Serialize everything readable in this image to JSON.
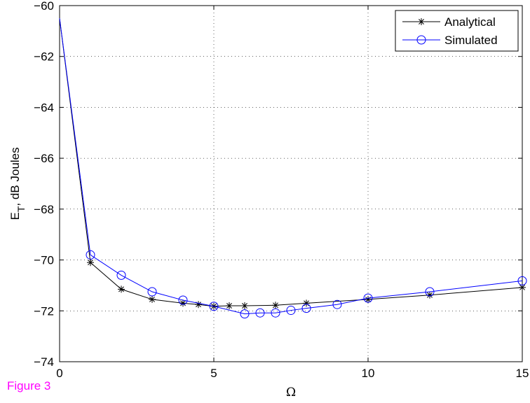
{
  "caption": {
    "text": "Figure 3",
    "color": "#ff00ff"
  },
  "chart_data": {
    "type": "line",
    "title": "",
    "xlabel": "Ω",
    "ylabel_main": "E",
    "ylabel_sub": "T",
    "ylabel_rest": ", dB Joules",
    "xlim": [
      0,
      15
    ],
    "ylim": [
      -74,
      -60
    ],
    "xticks": [
      0,
      5,
      10,
      15
    ],
    "yticks": [
      -74,
      -72,
      -70,
      -68,
      -66,
      -64,
      -62,
      -60
    ],
    "xticklabels": [
      "0",
      "5",
      "10",
      "15"
    ],
    "yticklabels": [
      "−74",
      "−72",
      "−70",
      "−68",
      "−66",
      "−64",
      "−62",
      "−60"
    ],
    "grid": true,
    "legend_position": "top-right",
    "series": [
      {
        "name": "Analytical",
        "color": "#000000",
        "marker": "asterisk",
        "x": [
          0,
          1,
          2,
          3,
          4,
          4.5,
          5,
          5.5,
          6,
          7,
          8,
          10,
          12,
          15
        ],
        "y": [
          -60.5,
          -70.1,
          -71.15,
          -71.55,
          -71.7,
          -71.75,
          -71.82,
          -71.8,
          -71.8,
          -71.78,
          -71.7,
          -71.55,
          -71.38,
          -71.08
        ]
      },
      {
        "name": "Simulated",
        "color": "#0000ff",
        "marker": "circle",
        "x": [
          0,
          1,
          2,
          3,
          4,
          5,
          6,
          6.5,
          7,
          7.5,
          8,
          9,
          10,
          12,
          15
        ],
        "y": [
          -60.5,
          -69.8,
          -70.6,
          -71.25,
          -71.58,
          -71.82,
          -72.12,
          -72.08,
          -72.08,
          -71.98,
          -71.9,
          -71.75,
          -71.5,
          -71.25,
          -70.82
        ]
      }
    ]
  }
}
